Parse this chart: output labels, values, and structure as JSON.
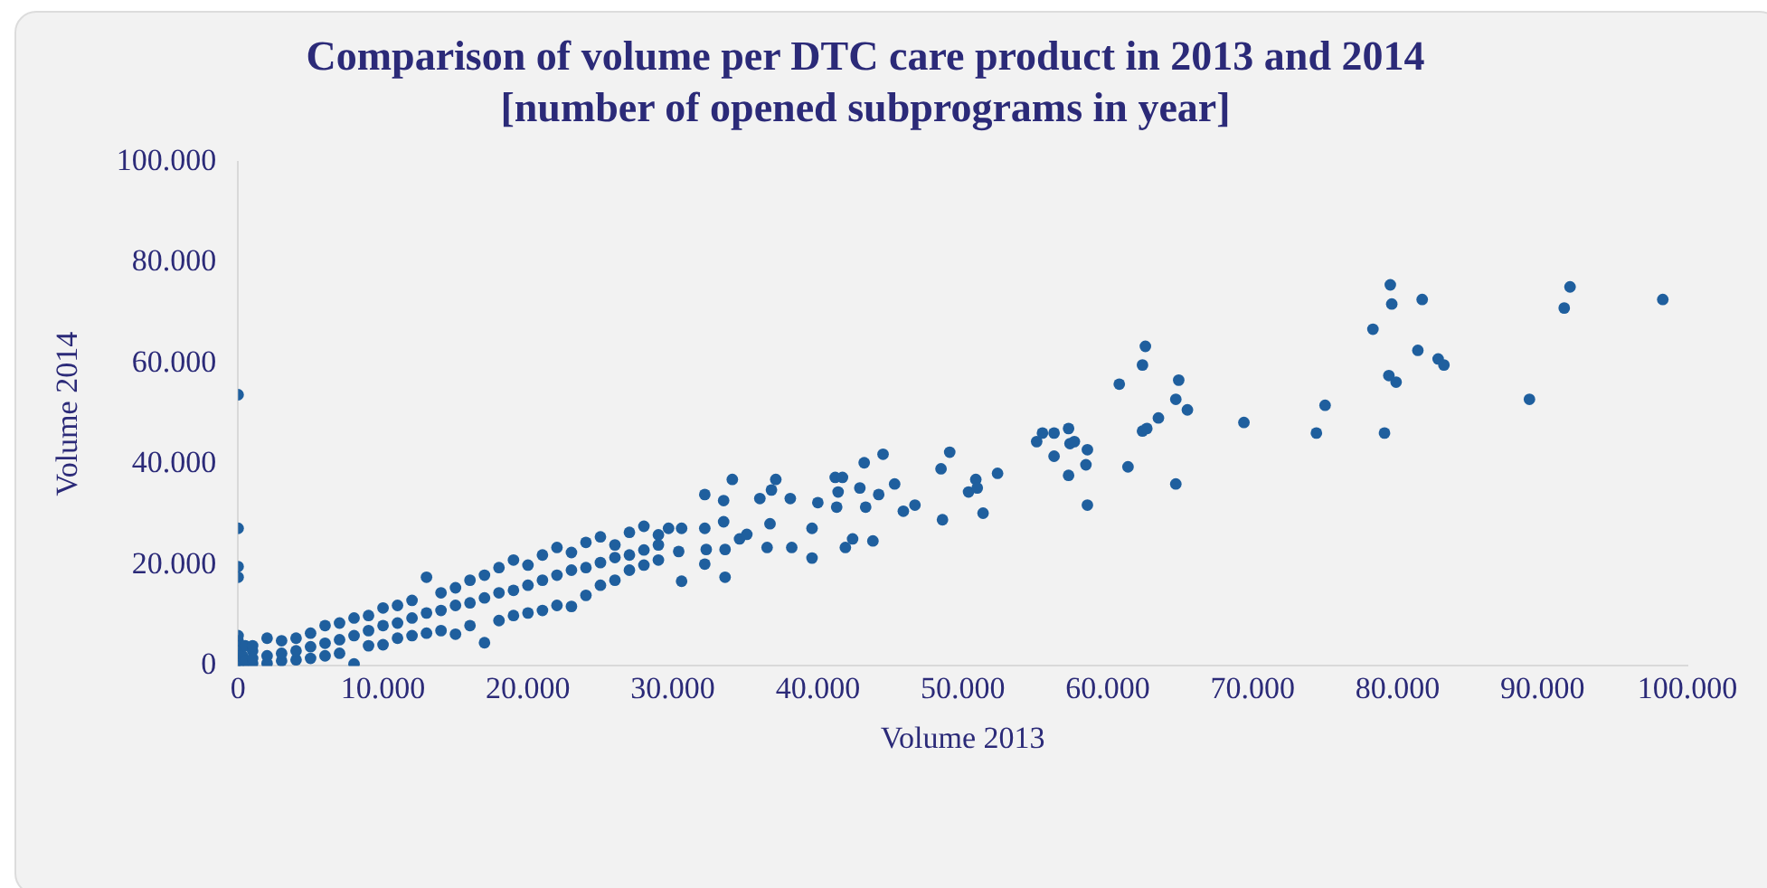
{
  "chart_data": {
    "type": "scatter",
    "title": "Comparison of volume per DTC care product in 2013 and 2014",
    "subtitle": "[number of opened subprograms in year]",
    "xlabel": "Volume 2013",
    "ylabel": "Volume 2014",
    "xlim": [
      0,
      100000
    ],
    "ylim": [
      0,
      100000
    ],
    "xticks": [
      0,
      {
        "value": 10000,
        "label": "10.000"
      },
      {
        "value": 20000,
        "label": "20.000"
      },
      {
        "value": 30000,
        "label": "30.000"
      },
      {
        "value": 40000,
        "label": "40.000"
      },
      {
        "value": 50000,
        "label": "50.000"
      },
      {
        "value": 60000,
        "label": "60.000"
      },
      {
        "value": 70000,
        "label": "70.000"
      },
      {
        "value": 80000,
        "label": "80.000"
      },
      {
        "value": 90000,
        "label": "90.000"
      },
      {
        "value": 100000,
        "label": "100.000"
      }
    ],
    "yticks": [
      0,
      {
        "value": 20000,
        "label": "20.000"
      },
      {
        "value": 40000,
        "label": "40.000"
      },
      {
        "value": 60000,
        "label": "60.000"
      },
      {
        "value": 80000,
        "label": "80.000"
      },
      {
        "value": 100000,
        "label": "100.000"
      }
    ],
    "grid": false,
    "legend": false,
    "marker": "circle",
    "series": [
      {
        "color": "#1f5f9e",
        "x": [
          0,
          0,
          0,
          0,
          0,
          0,
          0,
          0,
          0,
          0,
          0,
          300,
          500,
          500,
          1000,
          1000,
          1000,
          1000,
          2000,
          2000,
          2000,
          3000,
          3000,
          3000,
          4000,
          4000,
          4000,
          5000,
          5000,
          5000,
          6000,
          6000,
          6000,
          7000,
          7000,
          7000,
          8000,
          8000,
          8000,
          9000,
          9000,
          9000,
          10000,
          10000,
          10000,
          11000,
          11000,
          11000,
          12000,
          12000,
          12000,
          13000,
          13000,
          13000,
          14000,
          14000,
          14000,
          15000,
          15000,
          15000,
          16000,
          16000,
          16000,
          17000,
          17000,
          17000,
          18000,
          18000,
          18000,
          19000,
          19000,
          19000,
          20000,
          20000,
          20000,
          21000,
          21000,
          21000,
          22000,
          22000,
          22000,
          23000,
          23000,
          23000,
          24000,
          24000,
          24000,
          25000,
          25000,
          25000,
          26000,
          26000,
          26000,
          27000,
          27000,
          27000,
          28000,
          28000,
          28000,
          29000,
          29000,
          29000,
          29700,
          30400,
          30600,
          30600,
          32200,
          32200,
          32200,
          32300,
          33500,
          33500,
          33600,
          33600,
          34100,
          34600,
          35100,
          36000,
          36500,
          36700,
          36800,
          37100,
          38100,
          38200,
          39600,
          39600,
          40000,
          41200,
          41300,
          41400,
          41700,
          41900,
          42400,
          42900,
          43200,
          43300,
          43800,
          44200,
          44500,
          45300,
          45900,
          46700,
          48500,
          48600,
          49100,
          50400,
          50900,
          51000,
          51400,
          52400,
          55100,
          55500,
          56300,
          56300,
          57300,
          57300,
          57400,
          57700,
          58500,
          58600,
          58600,
          60800,
          61400,
          62400,
          62400,
          62600,
          62700,
          63500,
          64700,
          64700,
          64900,
          65500,
          69400,
          74400,
          75000,
          78300,
          79100,
          79400,
          79500,
          79600,
          79900,
          81400,
          81700,
          82800,
          83200,
          89100,
          91500,
          91900,
          98300
        ],
        "values": [
          0,
          1000,
          2000,
          3000,
          4000,
          5000,
          6000,
          53800,
          27300,
          19700,
          17600,
          2000,
          4000,
          1000,
          500,
          3000,
          1500,
          4000,
          500,
          2000,
          5500,
          1000,
          2500,
          5000,
          1200,
          3000,
          5500,
          1500,
          3800,
          6500,
          2000,
          4500,
          8000,
          2500,
          5200,
          8500,
          400,
          6000,
          9500,
          4000,
          7000,
          10000,
          4200,
          8000,
          11500,
          5500,
          8500,
          12000,
          6000,
          9500,
          13000,
          6500,
          10500,
          17600,
          7000,
          11000,
          14500,
          6300,
          12000,
          15500,
          8000,
          12500,
          17000,
          4600,
          13500,
          18000,
          9000,
          14500,
          19500,
          10000,
          15000,
          21000,
          10500,
          16000,
          20000,
          11000,
          17000,
          22000,
          12000,
          18000,
          23500,
          11800,
          19000,
          22500,
          14000,
          19500,
          24500,
          16000,
          20500,
          25600,
          17000,
          21500,
          24000,
          19000,
          22000,
          26500,
          20000,
          23000,
          27700,
          21000,
          24000,
          26000,
          27300,
          22700,
          16800,
          27300,
          34000,
          27300,
          20200,
          23100,
          32800,
          28600,
          23100,
          17600,
          37000,
          25200,
          26100,
          33200,
          23500,
          28200,
          34900,
          37000,
          33200,
          23500,
          27300,
          21400,
          32400,
          37400,
          31500,
          34500,
          37400,
          23500,
          25200,
          35300,
          40300,
          31500,
          24800,
          34000,
          42000,
          36100,
          30700,
          31900,
          39100,
          29000,
          42400,
          34500,
          37000,
          35300,
          30300,
          38200,
          44500,
          46200,
          46200,
          41600,
          47100,
          37800,
          44100,
          44500,
          39900,
          42900,
          31900,
          55900,
          39500,
          59700,
          46600,
          63400,
          47100,
          49200,
          52900,
          36100,
          56700,
          50800,
          48300,
          46200,
          51700,
          66800,
          46200,
          57600,
          75600,
          71800,
          56300,
          62600,
          72700,
          60900,
          59700,
          52900,
          71000,
          75200,
          72700
        ]
      }
    ]
  }
}
